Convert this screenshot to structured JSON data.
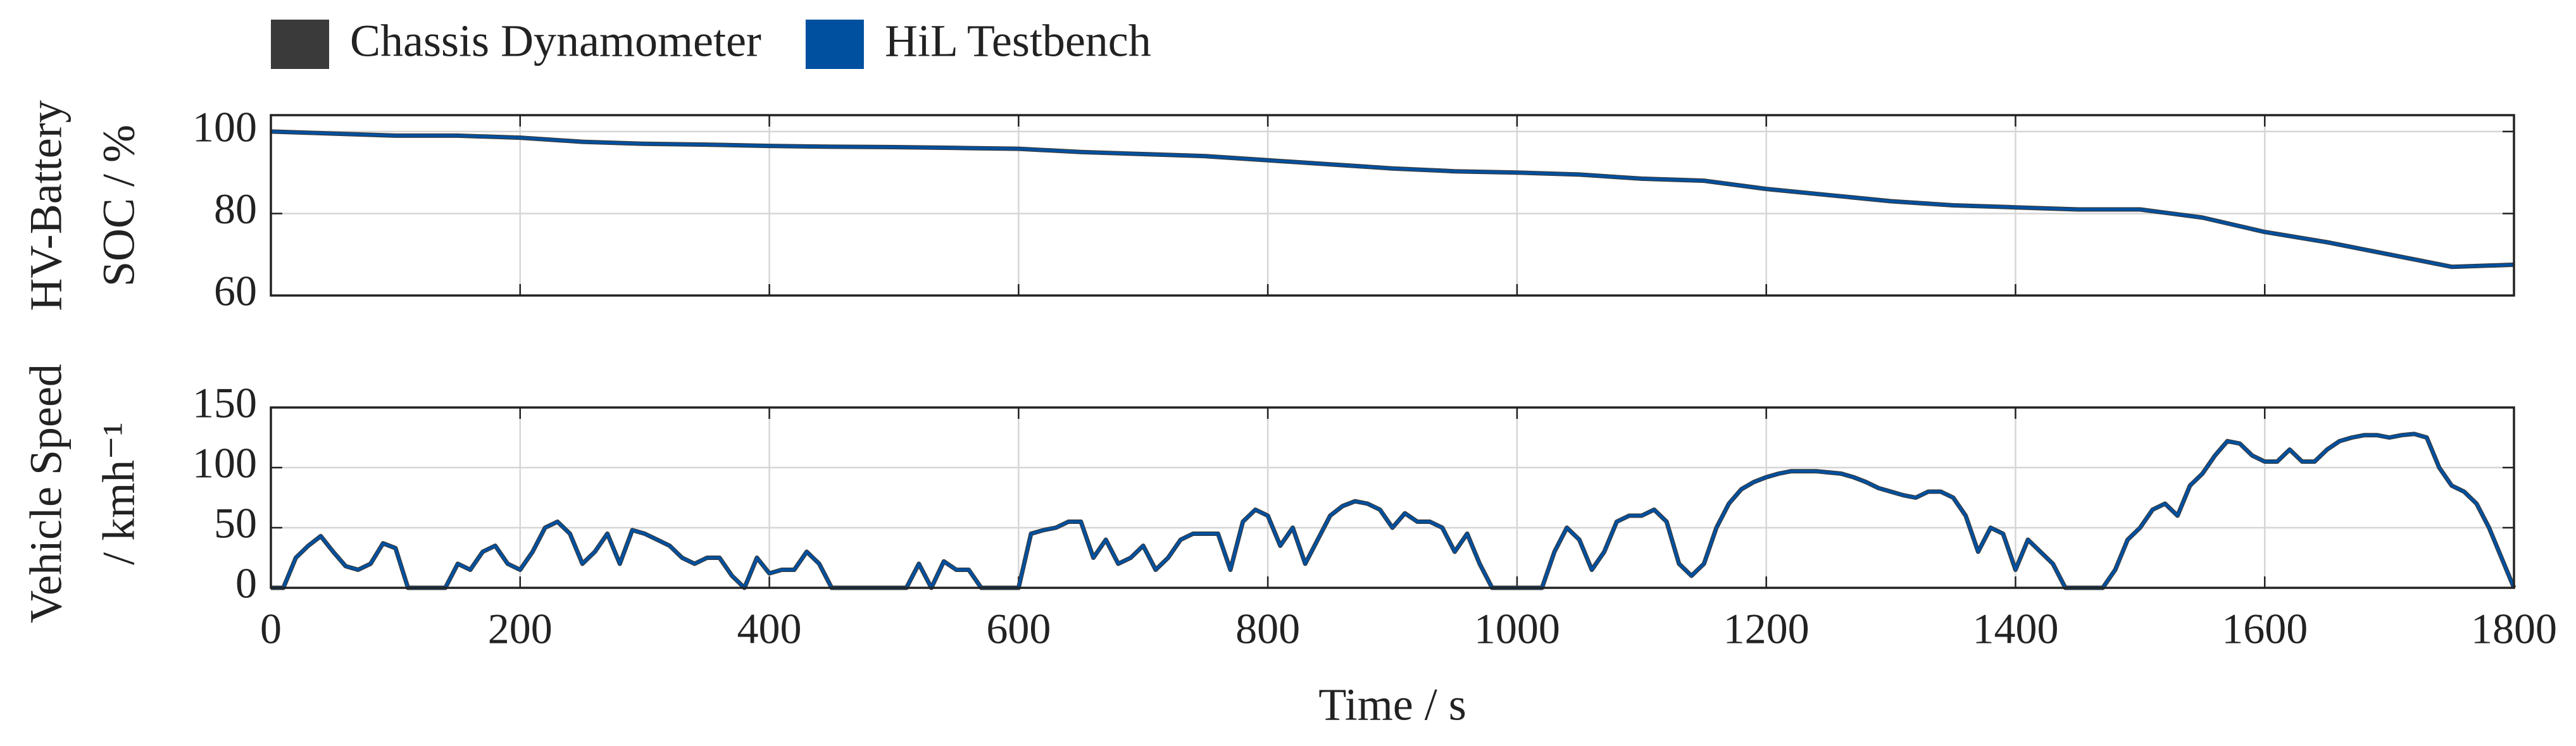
{
  "chart_data": [
    {
      "type": "line",
      "ylabel": [
        "HV-Battery",
        "SOC / %"
      ],
      "x": [
        0,
        50,
        100,
        150,
        200,
        250,
        300,
        350,
        400,
        450,
        500,
        550,
        600,
        650,
        700,
        750,
        800,
        850,
        900,
        950,
        1000,
        1050,
        1100,
        1150,
        1200,
        1250,
        1300,
        1350,
        1400,
        1450,
        1500,
        1550,
        1600,
        1650,
        1700,
        1750,
        1800
      ],
      "series": [
        {
          "name": "Chassis Dynamometer",
          "color": "#3a3a3a",
          "values": [
            100,
            99.5,
            99,
            99,
            98.5,
            97.5,
            97,
            96.8,
            96.5,
            96.3,
            96.2,
            96,
            95.8,
            95,
            94.5,
            94,
            93,
            92,
            91,
            90.3,
            90,
            89.5,
            88.5,
            88,
            86,
            84.5,
            83,
            82,
            81.5,
            81,
            81,
            79,
            75.5,
            73,
            70,
            67,
            67.5
          ]
        },
        {
          "name": "HiL Testbench",
          "color": "#0050a0",
          "values": [
            100,
            99.5,
            99,
            99,
            98.5,
            97.5,
            97,
            96.8,
            96.5,
            96.3,
            96.2,
            96,
            95.8,
            95,
            94.5,
            94,
            93,
            92,
            91,
            90.3,
            90,
            89.5,
            88.5,
            88,
            86,
            84.5,
            83,
            82,
            81.5,
            81,
            81,
            79,
            75.5,
            73,
            70,
            67,
            67.5
          ]
        }
      ],
      "xlim": [
        0,
        1800
      ],
      "ylim": [
        60,
        104
      ],
      "yticks": [
        60,
        80,
        100
      ],
      "grid": true
    },
    {
      "type": "line",
      "ylabel": [
        "Vehicle Speed",
        "/ kmh⁻¹"
      ],
      "xlabel": "Time / s",
      "x": [
        0,
        10,
        20,
        30,
        40,
        50,
        60,
        70,
        80,
        90,
        100,
        110,
        120,
        130,
        140,
        150,
        160,
        170,
        180,
        190,
        200,
        210,
        220,
        230,
        240,
        250,
        260,
        270,
        280,
        290,
        300,
        310,
        320,
        330,
        340,
        350,
        360,
        370,
        380,
        390,
        400,
        410,
        420,
        430,
        440,
        450,
        460,
        470,
        480,
        490,
        500,
        510,
        520,
        530,
        540,
        550,
        560,
        570,
        580,
        590,
        600,
        610,
        620,
        630,
        640,
        650,
        660,
        670,
        680,
        690,
        700,
        710,
        720,
        730,
        740,
        750,
        760,
        770,
        780,
        790,
        800,
        810,
        820,
        830,
        840,
        850,
        860,
        870,
        880,
        890,
        900,
        910,
        920,
        930,
        940,
        950,
        960,
        970,
        980,
        990,
        1000,
        1010,
        1020,
        1030,
        1040,
        1050,
        1060,
        1070,
        1080,
        1090,
        1100,
        1110,
        1120,
        1130,
        1140,
        1150,
        1160,
        1170,
        1180,
        1190,
        1200,
        1210,
        1220,
        1230,
        1240,
        1250,
        1260,
        1270,
        1280,
        1290,
        1300,
        1310,
        1320,
        1330,
        1340,
        1350,
        1360,
        1370,
        1380,
        1390,
        1400,
        1410,
        1420,
        1430,
        1440,
        1450,
        1460,
        1470,
        1480,
        1490,
        1500,
        1510,
        1520,
        1530,
        1540,
        1550,
        1560,
        1570,
        1580,
        1590,
        1600,
        1610,
        1620,
        1630,
        1640,
        1650,
        1660,
        1670,
        1680,
        1690,
        1700,
        1710,
        1720,
        1730,
        1740,
        1750,
        1760,
        1770,
        1780,
        1790,
        1800
      ],
      "series": [
        {
          "color": "#3a3a3a",
          "values": [
            0,
            0,
            25,
            35,
            43,
            30,
            18,
            15,
            20,
            37,
            33,
            0,
            0,
            0,
            0,
            20,
            15,
            30,
            35,
            20,
            15,
            30,
            50,
            55,
            45,
            20,
            30,
            45,
            20,
            48,
            45,
            40,
            35,
            25,
            20,
            25,
            25,
            10,
            0,
            25,
            12,
            15,
            15,
            30,
            20,
            0,
            0,
            0,
            0,
            0,
            0,
            0,
            20,
            0,
            22,
            15,
            15,
            0,
            0,
            0,
            0,
            45,
            48,
            50,
            55,
            55,
            25,
            40,
            20,
            25,
            35,
            15,
            25,
            40,
            45,
            45,
            45,
            15,
            55,
            65,
            60,
            35,
            50,
            20,
            40,
            60,
            68,
            72,
            70,
            65,
            50,
            62,
            55,
            55,
            50,
            30,
            45,
            20,
            0,
            0,
            0,
            0,
            0,
            30,
            50,
            40,
            15,
            30,
            55,
            60,
            60,
            65,
            55,
            20,
            10,
            20,
            50,
            70,
            82,
            88,
            92,
            95,
            97,
            97,
            97,
            96,
            95,
            92,
            88,
            83,
            80,
            77,
            75,
            80,
            80,
            75,
            60,
            30,
            50,
            45,
            15,
            40,
            30,
            20,
            0,
            0,
            0,
            0,
            15,
            40,
            50,
            65,
            70,
            60,
            85,
            95,
            110,
            122,
            120,
            110,
            105,
            105,
            115,
            105,
            105,
            115,
            122,
            125,
            127,
            127,
            125,
            127,
            128,
            125,
            100,
            85,
            80,
            70,
            50,
            25,
            0
          ]
        },
        {
          "color": "#0050a0",
          "values": [
            0,
            0,
            25,
            35,
            43,
            30,
            18,
            15,
            20,
            37,
            33,
            0,
            0,
            0,
            0,
            20,
            15,
            30,
            35,
            20,
            15,
            30,
            50,
            55,
            45,
            20,
            30,
            45,
            20,
            48,
            45,
            40,
            35,
            25,
            20,
            25,
            25,
            10,
            0,
            25,
            12,
            15,
            15,
            30,
            20,
            0,
            0,
            0,
            0,
            0,
            0,
            0,
            20,
            0,
            22,
            15,
            15,
            0,
            0,
            0,
            0,
            45,
            48,
            50,
            55,
            55,
            25,
            40,
            20,
            25,
            35,
            15,
            25,
            40,
            45,
            45,
            45,
            15,
            55,
            65,
            60,
            35,
            50,
            20,
            40,
            60,
            68,
            72,
            70,
            65,
            50,
            62,
            55,
            55,
            50,
            30,
            45,
            20,
            0,
            0,
            0,
            0,
            0,
            30,
            50,
            40,
            15,
            30,
            55,
            60,
            60,
            65,
            55,
            20,
            10,
            20,
            50,
            70,
            82,
            88,
            92,
            95,
            97,
            97,
            97,
            96,
            95,
            92,
            88,
            83,
            80,
            77,
            75,
            80,
            80,
            75,
            60,
            30,
            50,
            45,
            15,
            40,
            30,
            20,
            0,
            0,
            0,
            0,
            15,
            40,
            50,
            65,
            70,
            60,
            85,
            95,
            110,
            122,
            120,
            110,
            105,
            105,
            115,
            105,
            105,
            115,
            122,
            125,
            127,
            127,
            125,
            127,
            128,
            125,
            100,
            85,
            80,
            70,
            50,
            25,
            0
          ]
        }
      ],
      "xlim": [
        0,
        1800
      ],
      "xticks": [
        0,
        200,
        400,
        600,
        800,
        1000,
        1200,
        1400,
        1600,
        1800
      ],
      "ylim": [
        0,
        150
      ],
      "yticks": [
        0,
        50,
        100,
        150
      ],
      "grid": true
    }
  ]
}
